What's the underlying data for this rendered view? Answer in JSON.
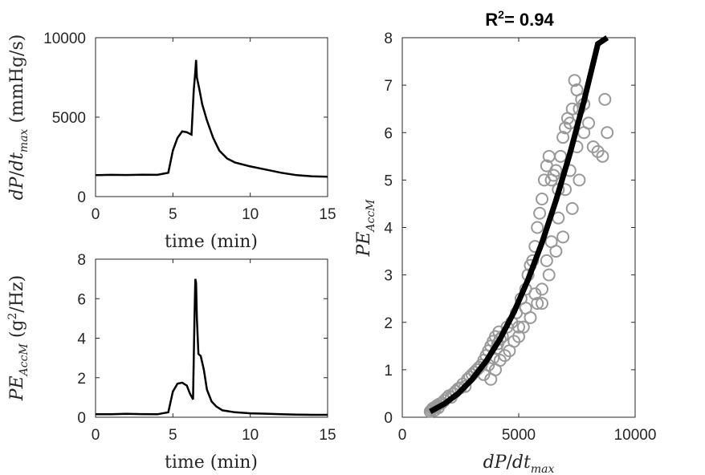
{
  "chart_data": [
    {
      "type": "line",
      "xlabel": "time (min)",
      "ylabel": "dP/dt_max (mmHg/s)",
      "xlim": [
        0,
        15
      ],
      "ylim": [
        0,
        10000
      ],
      "xticks": [
        "0",
        "5",
        "10",
        "15"
      ],
      "yticks": [
        "0",
        "5000",
        "10000"
      ],
      "series": [
        {
          "x": [
            0,
            1,
            2,
            3,
            4,
            4.7,
            5.0,
            5.3,
            5.6,
            5.9,
            6.2,
            6.35,
            6.45,
            6.5,
            6.55,
            6.7,
            6.9,
            7.2,
            7.6,
            8.0,
            8.5,
            9.0,
            10,
            11,
            12,
            13,
            14,
            15
          ],
          "y": [
            1350,
            1370,
            1360,
            1380,
            1370,
            1500,
            2900,
            3700,
            4100,
            4050,
            3900,
            6700,
            7900,
            8600,
            7500,
            6800,
            5800,
            4800,
            3700,
            2900,
            2400,
            2150,
            1900,
            1700,
            1500,
            1350,
            1280,
            1250
          ]
        }
      ]
    },
    {
      "type": "line",
      "xlabel": "time (min)",
      "ylabel": "PE_AccM (g²/Hz)",
      "xlim": [
        0,
        15
      ],
      "ylim": [
        0,
        8
      ],
      "xticks": [
        "0",
        "5",
        "10",
        "15"
      ],
      "yticks": [
        "0",
        "2",
        "4",
        "6",
        "8"
      ],
      "series": [
        {
          "x": [
            0,
            1,
            2,
            3,
            4,
            4.7,
            5.0,
            5.3,
            5.6,
            5.9,
            6.1,
            6.3,
            6.4,
            6.45,
            6.5,
            6.55,
            6.65,
            6.8,
            7.0,
            7.2,
            7.5,
            7.8,
            8.2,
            9,
            10,
            11,
            12,
            13,
            14,
            15
          ],
          "y": [
            0.15,
            0.15,
            0.17,
            0.16,
            0.15,
            0.25,
            1.3,
            1.7,
            1.75,
            1.6,
            1.2,
            0.9,
            5.2,
            7.0,
            6.8,
            5.0,
            3.2,
            3.1,
            2.4,
            1.4,
            0.8,
            0.55,
            0.35,
            0.25,
            0.2,
            0.18,
            0.15,
            0.13,
            0.12,
            0.12
          ]
        }
      ]
    },
    {
      "type": "scatter",
      "title": "R²= 0.94",
      "xlabel": "dP/dt_max",
      "ylabel": "PE_AccM",
      "xlim": [
        0,
        10000
      ],
      "ylim": [
        0,
        8
      ],
      "xticks": [
        "0",
        "5000",
        "10000"
      ],
      "yticks": [
        "0",
        "1",
        "2",
        "3",
        "4",
        "5",
        "6",
        "7",
        "8"
      ],
      "marker_color": "#999999",
      "fit_color": "#000000",
      "points": {
        "x": [
          1200,
          1250,
          1300,
          1350,
          1400,
          1450,
          1500,
          1550,
          1600,
          1700,
          1800,
          1900,
          2000,
          2100,
          2200,
          2300,
          2400,
          2500,
          2600,
          2700,
          2800,
          2900,
          3000,
          3100,
          3200,
          3300,
          3400,
          3500,
          3600,
          3700,
          3800,
          3900,
          4000,
          4100,
          4200,
          3500,
          3700,
          3900,
          4050,
          4150,
          4300,
          4500,
          4700,
          4900,
          5100,
          5300,
          5400,
          5500,
          5600,
          5700,
          5800,
          5900,
          6000,
          6100,
          6200,
          6300,
          6400,
          6500,
          6600,
          6700,
          6800,
          6900,
          7000,
          7100,
          7200,
          7300,
          7400,
          7500,
          7600,
          7700,
          7800,
          8000,
          8200,
          8400,
          8600,
          8700,
          8800,
          5000,
          5300,
          5700,
          6000,
          6300,
          6600,
          6900,
          7300,
          7600,
          3800,
          4000,
          4200,
          4400,
          4600,
          4800,
          5000,
          5200,
          5500,
          5800,
          6000,
          6200,
          6400,
          6700,
          7000,
          7200,
          7500,
          7800
        ],
        "y": [
          0.12,
          0.15,
          0.18,
          0.2,
          0.15,
          0.22,
          0.25,
          0.2,
          0.28,
          0.3,
          0.35,
          0.4,
          0.45,
          0.42,
          0.5,
          0.55,
          0.6,
          0.62,
          0.7,
          0.65,
          0.8,
          0.85,
          0.9,
          0.95,
          1.0,
          1.05,
          1.1,
          1.2,
          1.3,
          1.4,
          1.5,
          1.6,
          1.7,
          1.55,
          1.65,
          0.9,
          1.1,
          1.25,
          1.45,
          1.8,
          1.7,
          1.9,
          2.0,
          2.2,
          2.5,
          2.7,
          3.0,
          3.2,
          3.3,
          3.6,
          4.0,
          4.3,
          4.6,
          5.0,
          5.3,
          5.5,
          5.0,
          5.1,
          5.2,
          4.8,
          5.5,
          5.9,
          6.1,
          6.3,
          6.2,
          6.5,
          7.1,
          6.9,
          6.5,
          6.7,
          6.6,
          6.2,
          5.7,
          5.6,
          5.5,
          6.7,
          6.0,
          1.9,
          2.3,
          2.6,
          2.4,
          3.0,
          3.5,
          3.8,
          4.4,
          5.0,
          0.8,
          1.0,
          1.2,
          1.3,
          1.4,
          1.6,
          1.7,
          1.9,
          2.1,
          2.4,
          2.7,
          3.3,
          3.7,
          4.2,
          4.8,
          5.2,
          5.7,
          6.0
        ],
        "y2": []
      },
      "fit": {
        "x": [
          1200,
          1800,
          2400,
          3000,
          3600,
          4200,
          4800,
          5400,
          6000,
          6600,
          7200,
          7800,
          8400,
          8800
        ],
        "y": [
          0.12,
          0.28,
          0.5,
          0.8,
          1.18,
          1.65,
          2.22,
          2.9,
          3.68,
          4.57,
          5.56,
          6.66,
          7.87,
          8.0
        ]
      }
    }
  ]
}
